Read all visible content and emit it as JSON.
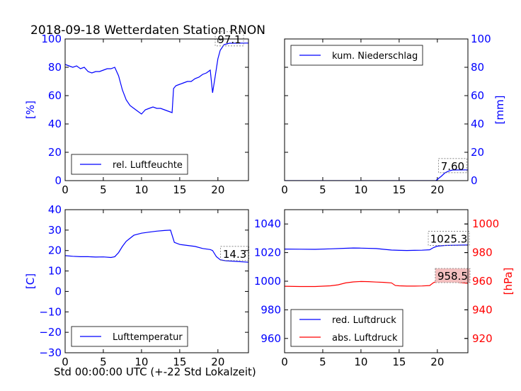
{
  "title": "2018-09-18 Wetterdaten Station RNON",
  "xlabel": "Std 00:00:00 UTC (+-22 Std Lokalzeit)",
  "chart_data": [
    {
      "id": "humidity",
      "type": "line",
      "ylabel": "[%]",
      "xlim": [
        0,
        24
      ],
      "ylim": [
        0,
        100
      ],
      "xticks": [
        "0",
        "5",
        "10",
        "15",
        "20"
      ],
      "yticks": [
        "0",
        "20",
        "40",
        "60",
        "80",
        "100"
      ],
      "legend": "bottom-left",
      "annotation": {
        "text": "97.1",
        "x": 21.5,
        "y": 97.1
      },
      "series": [
        {
          "name": "rel. Luftfeuchte",
          "color": "#0000ff",
          "points": [
            [
              0,
              82
            ],
            [
              0.5,
              81
            ],
            [
              1,
              80
            ],
            [
              1.5,
              81
            ],
            [
              2,
              79
            ],
            [
              2.5,
              80
            ],
            [
              3,
              77
            ],
            [
              3.5,
              76
            ],
            [
              4,
              77
            ],
            [
              4.5,
              77
            ],
            [
              5,
              78
            ],
            [
              5.5,
              79
            ],
            [
              6,
              79
            ],
            [
              6.5,
              80
            ],
            [
              7,
              74
            ],
            [
              7.5,
              64
            ],
            [
              8,
              57
            ],
            [
              8.5,
              53
            ],
            [
              9,
              51
            ],
            [
              9.5,
              49
            ],
            [
              10,
              47
            ],
            [
              10.5,
              50
            ],
            [
              11,
              51
            ],
            [
              11.5,
              52
            ],
            [
              12,
              51
            ],
            [
              12.5,
              51
            ],
            [
              13,
              50
            ],
            [
              13.5,
              49
            ],
            [
              14,
              48
            ],
            [
              14.2,
              65
            ],
            [
              14.5,
              67
            ],
            [
              15,
              68
            ],
            [
              15.5,
              69
            ],
            [
              16,
              70
            ],
            [
              16.5,
              70
            ],
            [
              17,
              72
            ],
            [
              17.5,
              73
            ],
            [
              18,
              75
            ],
            [
              18.5,
              76
            ],
            [
              19,
              78
            ],
            [
              19.3,
              62
            ],
            [
              19.6,
              72
            ],
            [
              20,
              86
            ],
            [
              20.3,
              92
            ],
            [
              20.8,
              96
            ],
            [
              21.5,
              97
            ],
            [
              24,
              97.1
            ]
          ]
        }
      ]
    },
    {
      "id": "precip",
      "type": "line",
      "ylabel": "[mm]",
      "xlim": [
        0,
        24
      ],
      "ylim": [
        0,
        100
      ],
      "xticks": [
        "0",
        "5",
        "10",
        "15",
        "20"
      ],
      "yticks": [
        "0",
        "20",
        "40",
        "60",
        "80",
        "100"
      ],
      "legend": "top-left",
      "annotation": {
        "text": "7.60",
        "x": 22.0,
        "y": 7.6
      },
      "series": [
        {
          "name": "kum. Niederschlag",
          "color": "#0000ff",
          "points": [
            [
              0,
              0
            ],
            [
              19.8,
              0
            ],
            [
              20.5,
              3
            ],
            [
              21,
              5.5
            ],
            [
              21.5,
              6.8
            ],
            [
              22,
              7.5
            ],
            [
              24,
              7.6
            ]
          ]
        }
      ]
    },
    {
      "id": "temperature",
      "type": "line",
      "ylabel": "[C]",
      "xlim": [
        0,
        24
      ],
      "ylim": [
        -30,
        40
      ],
      "xticks": [
        "0",
        "5",
        "10",
        "15",
        "20"
      ],
      "yticks": [
        "-30",
        "-20",
        "-10",
        "0",
        "10",
        "20",
        "30",
        "40"
      ],
      "legend": "bottom-left",
      "annotation": {
        "text": "14.3",
        "x": 22.2,
        "y": 16.5
      },
      "series": [
        {
          "name": "Lufttemperatur",
          "color": "#0000ff",
          "points": [
            [
              0,
              17.5
            ],
            [
              1,
              17.2
            ],
            [
              2,
              17
            ],
            [
              3,
              17
            ],
            [
              4,
              16.8
            ],
            [
              5,
              16.9
            ],
            [
              6,
              16.6
            ],
            [
              6.5,
              17
            ],
            [
              7,
              19
            ],
            [
              7.5,
              22
            ],
            [
              8,
              24.5
            ],
            [
              8.5,
              26
            ],
            [
              9,
              27.5
            ],
            [
              10,
              28.5
            ],
            [
              11,
              29
            ],
            [
              12,
              29.5
            ],
            [
              13,
              29.8
            ],
            [
              13.8,
              30
            ],
            [
              14.3,
              24
            ],
            [
              15,
              23
            ],
            [
              16,
              22.5
            ],
            [
              17,
              22
            ],
            [
              18,
              21
            ],
            [
              19,
              20.5
            ],
            [
              19.3,
              20
            ],
            [
              19.8,
              17
            ],
            [
              20.3,
              15.5
            ],
            [
              21,
              15
            ],
            [
              24,
              14.3
            ]
          ]
        }
      ]
    },
    {
      "id": "pressure",
      "type": "line",
      "ylabel": "[hPa]",
      "xlim": [
        0,
        24
      ],
      "ylim": [
        950,
        1050
      ],
      "y2lim": [
        910,
        1010
      ],
      "xticks": [
        "0",
        "5",
        "10",
        "15",
        "20"
      ],
      "yticks": [
        "960",
        "980",
        "1000",
        "1020",
        "1040"
      ],
      "y2ticks": [
        "920",
        "940",
        "960",
        "980",
        "1000"
      ],
      "legend": "bottom-left",
      "annotations": [
        {
          "text": "1025.3",
          "x": 21.5,
          "y": 1027
        },
        {
          "text": "958.5",
          "x": 22.0,
          "y2": 961
        }
      ],
      "series": [
        {
          "name": "red. Luftdruck",
          "color": "#0000ff",
          "axis": "left",
          "points": [
            [
              0,
              1022.5
            ],
            [
              2,
              1022.4
            ],
            [
              4,
              1022.3
            ],
            [
              6,
              1022.6
            ],
            [
              8,
              1023
            ],
            [
              9,
              1023.2
            ],
            [
              10,
              1023.1
            ],
            [
              12,
              1022.8
            ],
            [
              13,
              1022.3
            ],
            [
              14,
              1021.8
            ],
            [
              15,
              1021.6
            ],
            [
              16,
              1021.5
            ],
            [
              17,
              1021.6
            ],
            [
              18,
              1021.7
            ],
            [
              19,
              1022
            ],
            [
              19.5,
              1023.5
            ],
            [
              20,
              1024.5
            ],
            [
              21,
              1025
            ],
            [
              24,
              1025.3
            ]
          ]
        },
        {
          "name": "abs. Luftdruck",
          "color": "#ff0000",
          "axis": "right",
          "points": [
            [
              0,
              956.5
            ],
            [
              2,
              956.3
            ],
            [
              4,
              956.3
            ],
            [
              6,
              956.8
            ],
            [
              7,
              957.5
            ],
            [
              8,
              958.8
            ],
            [
              9,
              959.5
            ],
            [
              10,
              959.8
            ],
            [
              11,
              959.7
            ],
            [
              12,
              959.4
            ],
            [
              13,
              959.2
            ],
            [
              14,
              958.8
            ],
            [
              14.5,
              957
            ],
            [
              15,
              956.8
            ],
            [
              16,
              956.6
            ],
            [
              17,
              956.6
            ],
            [
              18,
              956.7
            ],
            [
              19,
              957
            ],
            [
              19.5,
              959
            ],
            [
              20,
              960
            ],
            [
              21,
              960.2
            ],
            [
              24,
              958.5
            ]
          ]
        }
      ]
    }
  ]
}
